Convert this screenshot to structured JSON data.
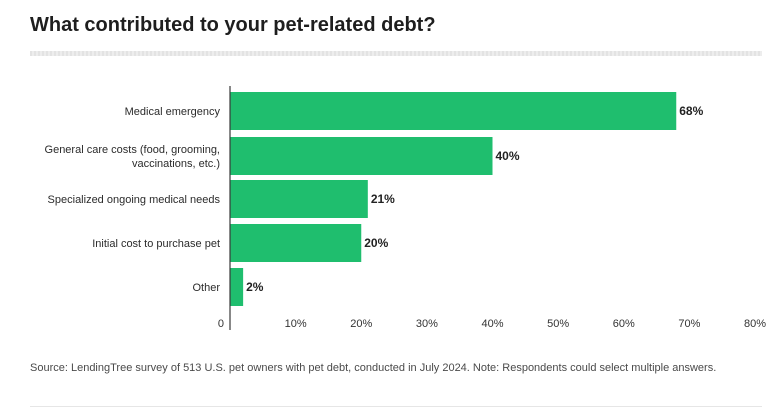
{
  "title": "What contributed to your pet-related debt?",
  "source": "Source: LendingTree survey of 513 U.S. pet owners with pet debt, conducted in July 2024. Note: Respondents could select multiple answers.",
  "chart_data": {
    "type": "bar",
    "orientation": "horizontal",
    "categories": [
      [
        "Medical emergency"
      ],
      [
        "General care costs (food, grooming,",
        "vaccinations, etc.)"
      ],
      [
        "Specialized ongoing medical needs"
      ],
      [
        "Initial cost to purchase pet"
      ],
      [
        "Other"
      ]
    ],
    "values": [
      68,
      40,
      21,
      20,
      2
    ],
    "value_labels": [
      "68%",
      "40%",
      "21%",
      "20%",
      "2%"
    ],
    "xlim": [
      0,
      80
    ],
    "x_ticks": [
      "0",
      "10%",
      "20%",
      "30%",
      "40%",
      "50%",
      "60%",
      "70%",
      "80%"
    ],
    "grid": false,
    "legend": "none",
    "bar_color": "#1fbe6e"
  }
}
